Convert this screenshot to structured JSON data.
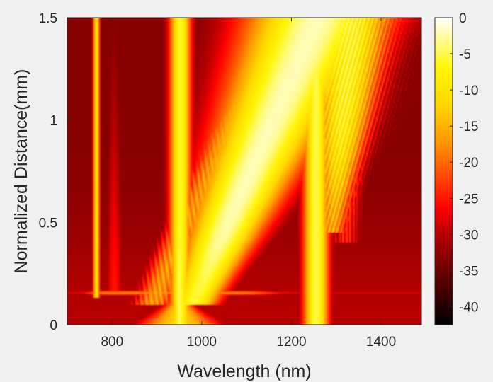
{
  "chart_data": {
    "type": "heatmap",
    "title": "",
    "xlabel": "Wavelength (nm)",
    "ylabel": "Normalized Distance(mm)",
    "xlim": [
      700,
      1490
    ],
    "ylim": [
      0,
      1.5
    ],
    "x_ticks": [
      800,
      1000,
      1200,
      1400
    ],
    "y_ticks": [
      0,
      0.5,
      1,
      1.5
    ],
    "y_tick_labels": [
      "0",
      "0.5",
      "1",
      "1.5"
    ],
    "colorbar": {
      "colormap": "hot",
      "range": [
        -42.5,
        0
      ],
      "ticks": [
        0,
        -5,
        -10,
        -15,
        -20,
        -25,
        -30,
        -35,
        -40
      ],
      "tick_labels": [
        "0",
        "-5",
        "-10",
        "-15",
        "-20",
        "-25",
        "-30",
        "-35",
        "-40"
      ]
    },
    "features": [
      {
        "name": "pump",
        "center_nm": 950,
        "z_range_mm": [
          0,
          1.5
        ],
        "peak_db": 0
      },
      {
        "name": "dispersive-wave-short",
        "center_nm": 765,
        "z_start_mm": 0.15,
        "peak_db": -10
      },
      {
        "name": "soliton-band",
        "center_nm_start": 980,
        "center_nm_end": 1250,
        "z_range_mm": [
          0.15,
          1.5
        ],
        "peak_db": -2
      },
      {
        "name": "dispersive-wave-long",
        "center_nm": 1255,
        "z_range_mm": [
          0,
          1.5
        ],
        "peak_db": -5
      },
      {
        "name": "red-shifted-fringes",
        "range_nm": [
          1230,
          1380
        ],
        "z_range_mm": [
          0.45,
          1.5
        ],
        "peak_db": -3
      }
    ]
  }
}
